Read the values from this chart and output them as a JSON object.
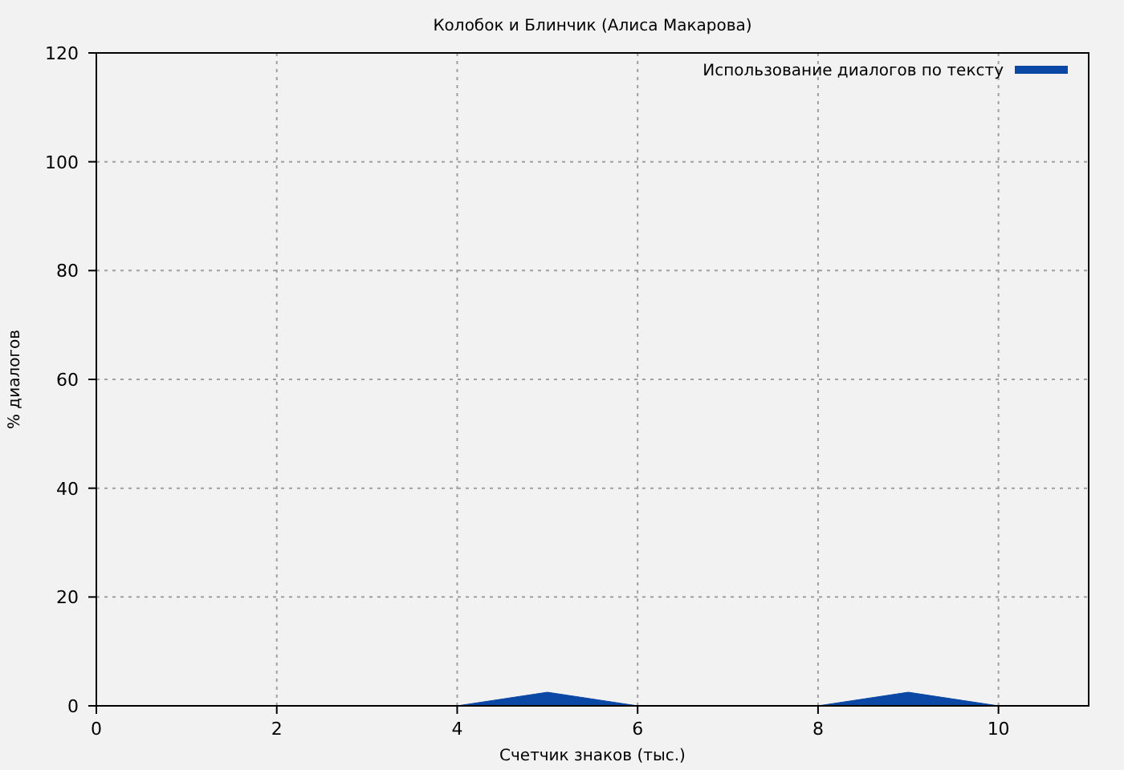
{
  "chart_data": {
    "type": "area",
    "title": "Колобок и Блинчик (Алиса Макарова)",
    "xlabel": "Счетчик знаков (тыс.)",
    "ylabel": "% диалогов",
    "x": [
      0,
      4,
      5,
      6,
      8,
      9,
      10,
      11
    ],
    "series": [
      {
        "name": "Использование диалогов по тексту",
        "color": "#0b47a5",
        "values": [
          0,
          0,
          2.5,
          0,
          0,
          2.5,
          0,
          0
        ]
      }
    ],
    "xlim": [
      0,
      11
    ],
    "ylim": [
      0,
      120
    ],
    "xticks": [
      0,
      2,
      4,
      6,
      8,
      10
    ],
    "yticks": [
      0,
      20,
      40,
      60,
      80,
      100,
      120
    ],
    "grid": true,
    "legend": "top right"
  }
}
